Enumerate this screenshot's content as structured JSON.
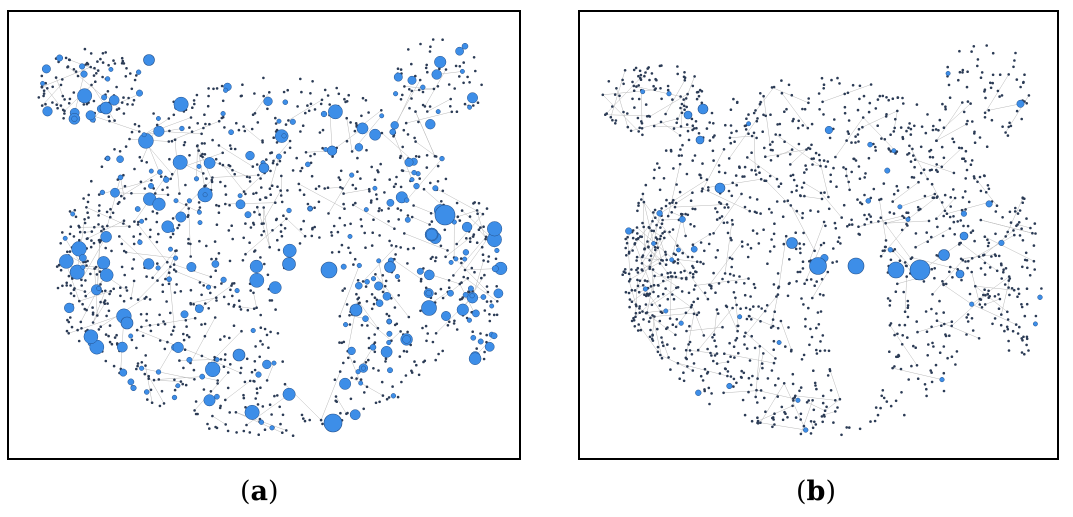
{
  "figure": {
    "panels": [
      {
        "id": "a",
        "label_open": "(",
        "label_letter": "a",
        "label_close": ")"
      },
      {
        "id": "b",
        "label_open": "(",
        "label_letter": "b",
        "label_close": ")"
      }
    ]
  },
  "colors": {
    "node_fill": "#3d8ee8",
    "node_stroke": "#24508a",
    "small_node": "#2b3b55",
    "edge": "#b9b9b9",
    "frame": "#000000",
    "background": "#ffffff"
  }
}
